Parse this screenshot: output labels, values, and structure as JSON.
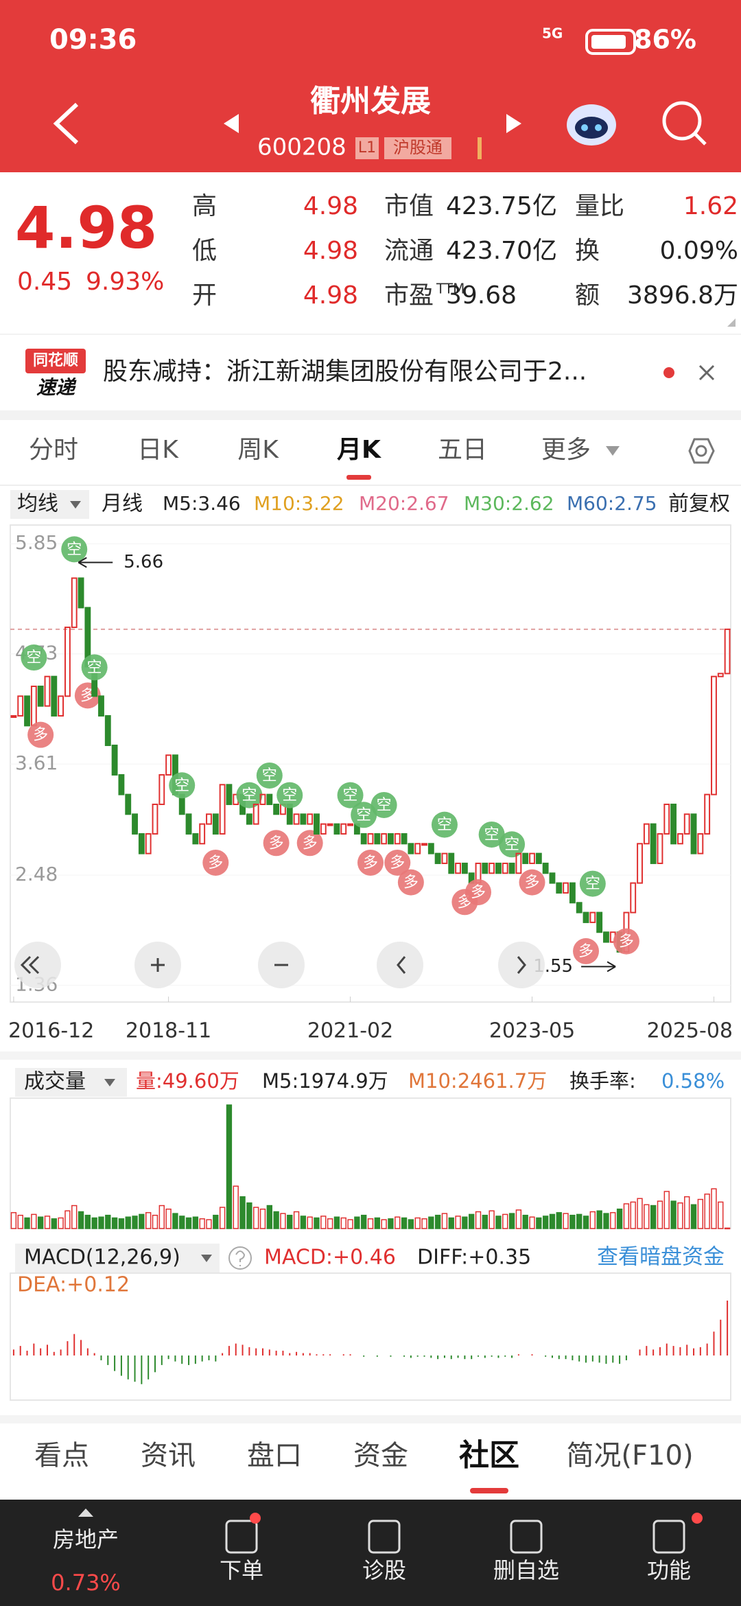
{
  "status_bar": {
    "time": "09:36",
    "network": "5G",
    "battery": "86%"
  },
  "header": {
    "title": "衢州发展",
    "code": "600208",
    "badges": [
      "L1",
      "沪股通"
    ]
  },
  "quote": {
    "price": "4.98",
    "change": "0.45",
    "change_pct": "9.93%",
    "columns": [
      [
        {
          "label": "高",
          "value": "4.98"
        },
        {
          "label": "低",
          "value": "4.98"
        },
        {
          "label": "开",
          "value": "4.98"
        }
      ],
      [
        {
          "label": "市值",
          "value": "423.75亿"
        },
        {
          "label": "流通",
          "value": "423.70亿"
        },
        {
          "label": "市盈",
          "sup": "TTM",
          "value": "39.68"
        }
      ],
      [
        {
          "label": "量比",
          "value": "1.62"
        },
        {
          "label": "换",
          "value": "0.09%"
        },
        {
          "label": "额",
          "value": "3896.8万"
        }
      ]
    ]
  },
  "news": {
    "logo_top": "同花顺",
    "logo_bottom": "速递",
    "text": "股东减持：浙江新湖集团股份有限公司于2..."
  },
  "tabs": {
    "items": [
      "分时",
      "日K",
      "周K",
      "月K",
      "五日",
      "更多"
    ],
    "active": 3
  },
  "ma_bar": {
    "mode": "均线",
    "period": "月线",
    "adjust": "前复权",
    "items": [
      {
        "text": "M5:3.46",
        "color": "#222222"
      },
      {
        "text": "M10:3.22",
        "color": "#e0a020"
      },
      {
        "text": "M20:2.67",
        "color": "#e06a8a"
      },
      {
        "text": "M30:2.62",
        "color": "#5cb85c"
      },
      {
        "text": "M60:2.75",
        "color": "#3a6fb0"
      }
    ]
  },
  "kline_chart": {
    "type": "candlestick",
    "up_color": "#e03030",
    "down_color": "#2d8a2d",
    "ylim": [
      1.19,
      6.04
    ],
    "yticks": [
      5.85,
      4.73,
      3.61,
      2.48,
      1.36
    ],
    "max_marker": 5.66,
    "min_marker": 1.55,
    "categories": [
      "2016-12",
      null,
      null,
      null,
      null,
      null,
      null,
      null,
      null,
      null,
      null,
      null,
      null,
      null,
      null,
      null,
      null,
      null,
      null,
      null,
      null,
      null,
      null,
      "2018-11",
      null,
      null,
      null,
      null,
      null,
      null,
      null,
      null,
      null,
      null,
      null,
      null,
      null,
      null,
      null,
      null,
      null,
      null,
      null,
      null,
      null,
      null,
      null,
      null,
      null,
      null,
      "2021-02",
      null,
      null,
      null,
      null,
      null,
      null,
      null,
      null,
      null,
      null,
      null,
      null,
      null,
      null,
      null,
      null,
      null,
      null,
      null,
      null,
      null,
      null,
      null,
      null,
      null,
      null,
      "2023-05",
      null,
      null,
      null,
      null,
      null,
      null,
      null,
      null,
      null,
      null,
      null,
      null,
      null,
      null,
      null,
      null,
      null,
      null,
      null,
      null,
      null,
      null,
      null,
      null,
      null,
      null,
      "2025-08",
      null,
      null
    ],
    "values": [
      4.1,
      4.3,
      4.0,
      4.4,
      4.2,
      4.5,
      4.1,
      4.3,
      5.0,
      5.5,
      5.2,
      4.6,
      4.3,
      4.1,
      3.8,
      3.5,
      3.3,
      3.1,
      2.9,
      2.7,
      2.9,
      3.2,
      3.5,
      3.7,
      3.3,
      3.1,
      2.9,
      2.8,
      3.0,
      3.1,
      2.9,
      3.4,
      3.2,
      3.3,
      3.1,
      3.0,
      3.2,
      3.3,
      3.2,
      3.1,
      3.2,
      3.0,
      3.1,
      3.0,
      3.1,
      2.9,
      3.0,
      3.0,
      2.9,
      3.0,
      3.0,
      2.9,
      2.8,
      2.9,
      2.8,
      2.9,
      2.8,
      2.9,
      2.8,
      2.7,
      2.8,
      2.8,
      2.7,
      2.6,
      2.7,
      2.5,
      2.6,
      2.5,
      2.4,
      2.6,
      2.5,
      2.6,
      2.5,
      2.6,
      2.5,
      2.7,
      2.6,
      2.7,
      2.6,
      2.5,
      2.4,
      2.3,
      2.4,
      2.2,
      2.1,
      2.0,
      2.1,
      1.9,
      1.8,
      1.9,
      1.7,
      2.1,
      2.4,
      2.8,
      3.0,
      2.6,
      2.9,
      3.2,
      2.8,
      2.9,
      3.1,
      2.7,
      2.9,
      3.3,
      4.5,
      4.53,
      4.98
    ],
    "signals": [
      null,
      null,
      null,
      "空",
      "多",
      null,
      null,
      null,
      null,
      "空",
      null,
      "多",
      "空",
      null,
      null,
      null,
      null,
      null,
      null,
      null,
      null,
      null,
      null,
      null,
      null,
      "空",
      null,
      null,
      null,
      null,
      "多",
      null,
      null,
      null,
      null,
      "空",
      null,
      null,
      "空",
      "多",
      null,
      "空",
      null,
      null,
      "多",
      null,
      null,
      null,
      null,
      null,
      "空",
      null,
      "空",
      "多",
      null,
      "空",
      null,
      "多",
      null,
      "多",
      null,
      null,
      null,
      null,
      "空",
      null,
      null,
      "多",
      null,
      "多",
      null,
      "空",
      null,
      null,
      "空",
      null,
      null,
      "多",
      null,
      null,
      null,
      null,
      null,
      null,
      null,
      "多",
      "空",
      null,
      null,
      null,
      null,
      "多",
      null,
      null,
      null,
      null,
      null,
      null,
      null,
      null,
      null,
      null,
      null,
      null,
      null,
      null,
      null
    ]
  },
  "volume": {
    "header": "成交量",
    "items": [
      {
        "text": "量:49.60万",
        "color": "#e03030"
      },
      {
        "text": "M5:1974.9万",
        "color": "#222222"
      },
      {
        "text": "M10:2461.7万",
        "color": "#e0763a"
      },
      {
        "text": "换手率:",
        "color": "#222222"
      },
      {
        "text": "0.58%",
        "color": "#3a8fd8"
      }
    ],
    "values": [
      1800,
      1500,
      1200,
      1600,
      1300,
      1400,
      1100,
      1200,
      2000,
      2600,
      1900,
      1500,
      1200,
      1300,
      1500,
      1200,
      1100,
      1300,
      1400,
      1600,
      1800,
      1500,
      2600,
      2200,
      1700,
      1400,
      1200,
      1300,
      1100,
      1000,
      1500,
      2400,
      14000,
      4800,
      3600,
      2900,
      2400,
      2200,
      2600,
      1900,
      1700,
      1500,
      1900,
      1400,
      1300,
      1200,
      1400,
      1100,
      1300,
      1200,
      1000,
      1300,
      1500,
      1100,
      1200,
      1000,
      1100,
      1300,
      1200,
      1000,
      1200,
      1100,
      1300,
      1500,
      1700,
      1200,
      1400,
      1300,
      1600,
      1900,
      1500,
      2000,
      1400,
      1600,
      1700,
      2100,
      1500,
      1300,
      1200,
      1400,
      1600,
      1800,
      1700,
      1500,
      1600,
      1400,
      1900,
      2000,
      1700,
      1800,
      2200,
      2800,
      3000,
      3400,
      2700,
      2600,
      3100,
      4200,
      3100,
      2900,
      3600,
      2700,
      3300,
      3900,
      4500,
      3000,
      49.6
    ]
  },
  "macd": {
    "header": "MACD(12,26,9)",
    "items": [
      {
        "text": "MACD:+0.46",
        "color": "#e03030"
      },
      {
        "text": "DIFF:+0.35",
        "color": "#222222"
      }
    ],
    "link": "查看暗盘资金",
    "dea": "DEA:+0.12",
    "values": [
      0.05,
      0.08,
      0.04,
      0.1,
      0.06,
      0.09,
      0.03,
      0.05,
      0.12,
      0.18,
      0.13,
      0.06,
      0.02,
      -0.04,
      -0.08,
      -0.13,
      -0.17,
      -0.2,
      -0.22,
      -0.24,
      -0.2,
      -0.14,
      -0.08,
      -0.03,
      -0.05,
      -0.07,
      -0.08,
      -0.07,
      -0.05,
      -0.04,
      -0.05,
      0.02,
      0.08,
      0.1,
      0.09,
      0.07,
      0.06,
      0.06,
      0.05,
      0.04,
      0.04,
      0.02,
      0.03,
      0.02,
      0.02,
      0.01,
      0.01,
      0.01,
      0.0,
      0.01,
      0.01,
      0.0,
      -0.01,
      0.0,
      -0.01,
      0.0,
      -0.01,
      0.0,
      -0.01,
      -0.02,
      -0.01,
      -0.01,
      -0.02,
      -0.03,
      -0.02,
      -0.03,
      -0.02,
      -0.03,
      -0.03,
      -0.01,
      -0.02,
      -0.01,
      -0.02,
      -0.01,
      -0.02,
      0.01,
      0.0,
      0.01,
      0.0,
      -0.01,
      -0.02,
      -0.03,
      -0.03,
      -0.04,
      -0.05,
      -0.06,
      -0.05,
      -0.06,
      -0.07,
      -0.06,
      -0.07,
      -0.04,
      0.0,
      0.05,
      0.08,
      0.05,
      0.07,
      0.1,
      0.08,
      0.07,
      0.09,
      0.06,
      0.07,
      0.1,
      0.2,
      0.3,
      0.46
    ]
  },
  "bottom_tabs": {
    "items": [
      "看点",
      "资讯",
      "盘口",
      "资金",
      "社区",
      "简况(F10)"
    ],
    "active": 4
  },
  "nav": {
    "sector": "房地产",
    "sector_change": "0.73%",
    "items": [
      "下单",
      "诊股",
      "删自选",
      "功能"
    ]
  }
}
